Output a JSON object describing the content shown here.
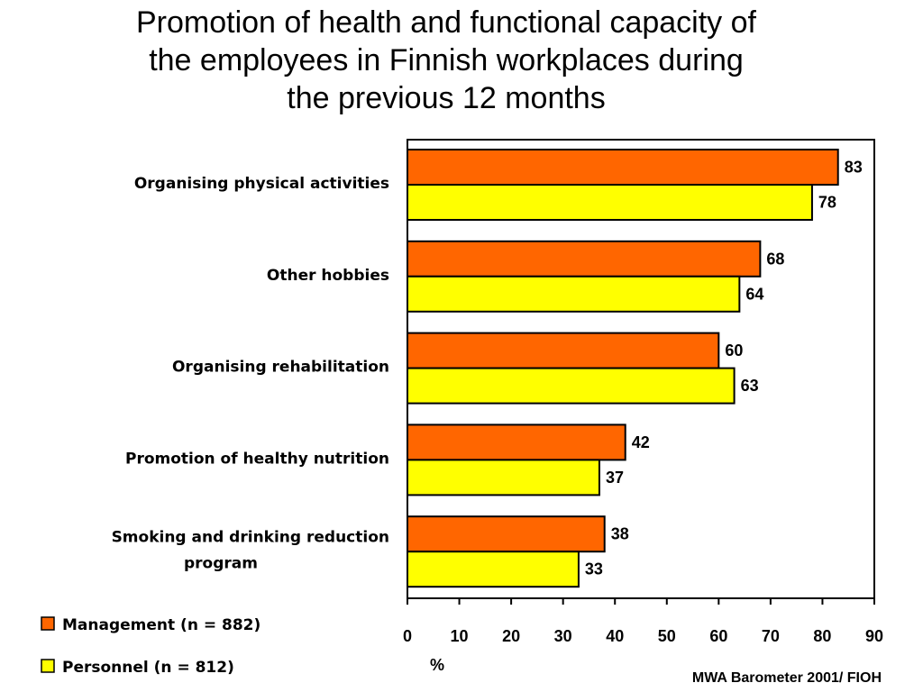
{
  "title_lines": [
    "Promotion of health and functional capacity of",
    "the employees in Finnish workplaces during",
    "the previous 12 months"
  ],
  "source": "MWA Barometer 2001/ FIOH",
  "colors": {
    "management": "#FF6600",
    "personnel": "#FFFF00",
    "outline": "#000000"
  },
  "chart_data": {
    "type": "bar",
    "orientation": "horizontal",
    "title": "Promotion of health and functional capacity of the employees in Finnish workplaces during the previous 12 months",
    "xlabel": "%",
    "ylabel": "",
    "xlim": [
      0,
      90
    ],
    "xticks": [
      0,
      10,
      20,
      30,
      40,
      50,
      60,
      70,
      80,
      90
    ],
    "grid": false,
    "legend_position": "bottom-left",
    "categories": [
      [
        "Organising physical activities"
      ],
      [
        "Other hobbies"
      ],
      [
        "Organising rehabilitation"
      ],
      [
        "Promotion of healthy nutrition"
      ],
      [
        "Smoking and drinking reduction",
        "program"
      ]
    ],
    "series": [
      {
        "name": "Management (n = 882)",
        "color": "#FF6600",
        "values": [
          83,
          68,
          60,
          42,
          38
        ]
      },
      {
        "name": "Personnel (n = 812)",
        "color": "#FFFF00",
        "values": [
          78,
          64,
          63,
          37,
          33
        ]
      }
    ]
  }
}
